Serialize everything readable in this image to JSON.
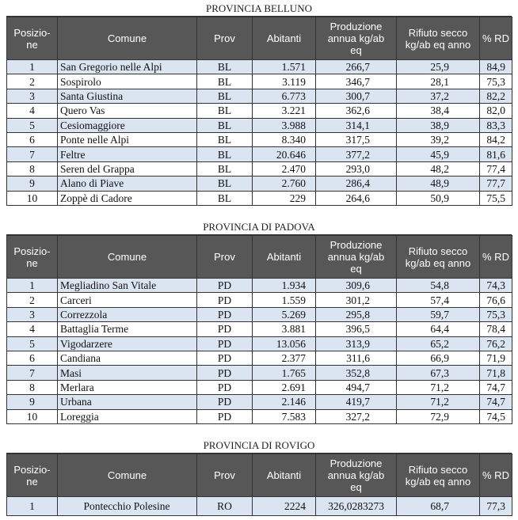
{
  "sections": [
    {
      "title": "PROVINCIA BELLUNO",
      "header": [
        [
          "Posizio-",
          "ne"
        ],
        [
          "Comune"
        ],
        [
          "Prov"
        ],
        [
          "Abitanti"
        ],
        [
          "Produzione",
          "annua kg/ab",
          "eq"
        ],
        [
          "Rifiuto secco",
          "kg/ab eq anno"
        ],
        [
          "% RD"
        ]
      ],
      "rows": [
        [
          "1",
          "San Gregorio nelle Alpi",
          "BL",
          "1.571",
          "266,7",
          "25,9",
          "84,9"
        ],
        [
          "2",
          "Sospirolo",
          "BL",
          "3.119",
          "346,7",
          "28,1",
          "75,3"
        ],
        [
          "3",
          "Santa Giustina",
          "BL",
          "6.773",
          "300,7",
          "37,2",
          "82,2"
        ],
        [
          "4",
          "Quero Vas",
          "BL",
          "3.221",
          "362,6",
          "38,4",
          "82,0"
        ],
        [
          "5",
          "Cesiomaggiore",
          "BL",
          "3.988",
          "314,1",
          "38,9",
          "83,3"
        ],
        [
          "6",
          "Ponte nelle Alpi",
          "BL",
          "8.340",
          "317,5",
          "39,2",
          "84,2"
        ],
        [
          "7",
          "Feltre",
          "BL",
          "20.646",
          "377,2",
          "45,9",
          "81,6"
        ],
        [
          "8",
          "Seren del Grappa",
          "BL",
          "2.470",
          "293,0",
          "48,2",
          "77,4"
        ],
        [
          "9",
          "Alano di Piave",
          "BL",
          "2.760",
          "286,4",
          "48,9",
          "77,7"
        ],
        [
          "10",
          "Zoppè di Cadore",
          "BL",
          "229",
          "264,6",
          "50,9",
          "75,5"
        ]
      ]
    },
    {
      "title": "PROVINCIA DI PADOVA",
      "header": [
        [
          "Posizio-",
          "ne"
        ],
        [
          "Comune"
        ],
        [
          "Prov"
        ],
        [
          "Abitanti"
        ],
        [
          "Produzione",
          "annua kg/ab",
          "eq"
        ],
        [
          "Rifiuto secco",
          "kg/ab eq anno"
        ],
        [
          "% RD"
        ]
      ],
      "rows": [
        [
          "1",
          "Megliadino San Vitale",
          "PD",
          "1.934",
          "309,6",
          "54,8",
          "74,3"
        ],
        [
          "2",
          "Carceri",
          "PD",
          "1.559",
          "301,2",
          "57,4",
          "76,6"
        ],
        [
          "3",
          "Correzzola",
          "PD",
          "5.269",
          "295,8",
          "59,7",
          "75,3"
        ],
        [
          "4",
          "Battaglia Terme",
          "PD",
          "3.881",
          "396,5",
          "64,4",
          "78,4"
        ],
        [
          "5",
          "Vigodarzere",
          "PD",
          "13.056",
          "313,9",
          "65,2",
          "76,2"
        ],
        [
          "6",
          "Candiana",
          "PD",
          "2.377",
          "311,6",
          "66,9",
          "71,9"
        ],
        [
          "7",
          "Masi",
          "PD",
          "1.765",
          "352,8",
          "67,3",
          "71,8"
        ],
        [
          "8",
          "Merlara",
          "PD",
          "2.691",
          "494,7",
          "71,2",
          "74,7"
        ],
        [
          "9",
          "Urbana",
          "PD",
          "2.146",
          "419,7",
          "71,2",
          "74,7"
        ],
        [
          "10",
          "Loreggia",
          "PD",
          "7.583",
          "327,2",
          "72,9",
          "74,5"
        ]
      ]
    },
    {
      "title": "PROVINCIA DI ROVIGO",
      "header": [
        [
          "Posizio-",
          "ne"
        ],
        [
          "Comune"
        ],
        [
          "Prov"
        ],
        [
          "Abitanti"
        ],
        [
          "Produzione",
          "annua kg/ab",
          "eq"
        ],
        [
          "Rifiuto secco",
          "kg/ab eq anno"
        ],
        [
          "% RD"
        ]
      ],
      "rows": [
        [
          "1",
          "Pontecchio Polesine",
          "RO",
          "2224",
          "326,0283273",
          "68,7",
          "77,3"
        ]
      ]
    }
  ]
}
